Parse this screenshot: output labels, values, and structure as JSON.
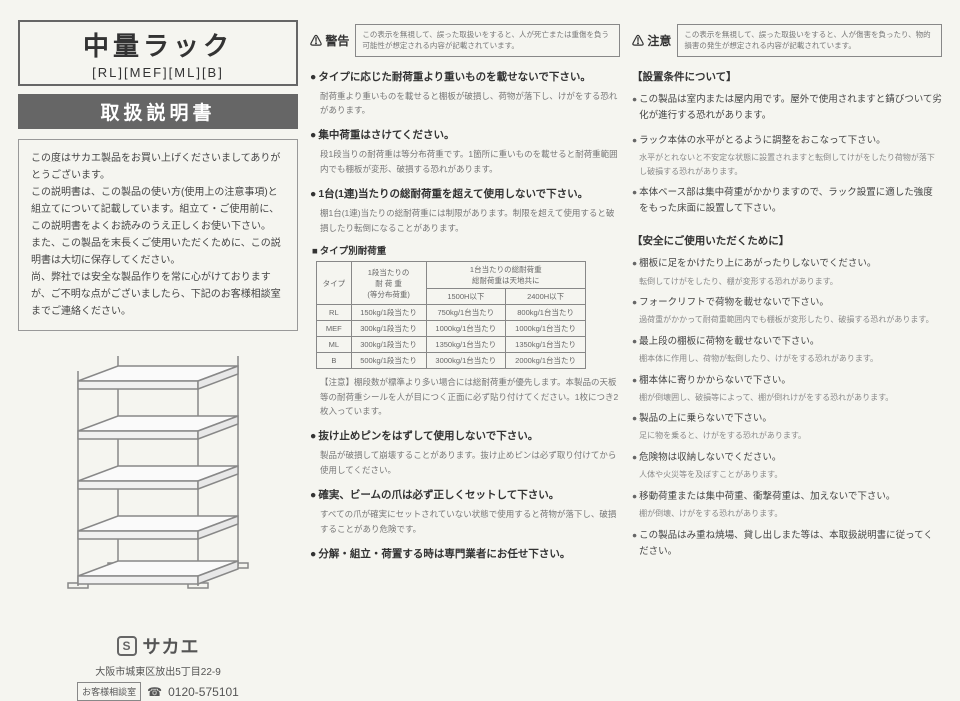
{
  "col1": {
    "title_main": "中量ラック",
    "title_sub": "[RL][MEF][ML][B]",
    "banner": "取扱説明書",
    "intro": "この度はサカエ製品をお買い上げくださいましてありがとうございます。\nこの説明書は、この製品の使い方(使用上の注意事項)と組立てについて記載しています。組立て・ご使用前に、この説明書をよくお読みのうえ正しくお使い下さい。\nまた、この製品を末長くご使用いただくために、この説明書は大切に保存してください。\n尚、弊社では安全な製品作りを常に心がけておりますが、ご不明な点がございましたら、下記のお客様相談室までご連絡ください。",
    "logo_s": "S",
    "logo_name": "サカエ",
    "address": "大阪市城東区放出5丁目22-9",
    "phone_label": "お客様相談室",
    "phone_icon": "☎",
    "phone_num": "0120-575101"
  },
  "warnings": [
    {
      "label": "⚠ 警告",
      "text": "この表示を無視して、誤った取扱いをすると、人が死亡または重傷を負う可能性が想定される内容が記載されています。"
    },
    {
      "label": "⚠ 注意",
      "text": "この表示を無視して、誤った取扱いをすると、人が傷害を負ったり、物的損害の発生が想定される内容が記載されています。"
    }
  ],
  "col2_sections": [
    {
      "head": "タイプに応じた耐荷重より重いものを載せないで下さい。",
      "body": "耐荷重より重いものを載せると棚板が破損し、荷物が落下し、けがをする恐れがあります。"
    },
    {
      "head": "集中荷重はさけてください。",
      "body": "段1段当りの耐荷重は等分布荷重です。1箇所に重いものを載せると耐荷重範囲内でも棚板が変形、破損する恐れがあります。"
    },
    {
      "head": "1台(1連)当たりの総耐荷重を超えて使用しないで下さい。",
      "body": "棚1台(1連)当たりの総耐荷重には制限があります。制限を超えて使用すると破損したり転倒になることがあります。"
    }
  ],
  "load_table": {
    "title": "タイプ別耐荷重",
    "head_r1": [
      "タイプ",
      "1段当たりの\n耐 荷 重\n(等分布荷重)",
      "1台当たりの総耐荷重\n総耐荷重は天地共に"
    ],
    "head_r2": [
      "1500H以下",
      "2400H以下"
    ],
    "rows": [
      [
        "RL",
        "150kg/1段当たり",
        "750kg/1台当たり",
        "800kg/1台当たり"
      ],
      [
        "MEF",
        "300kg/1段当たり",
        "1000kg/1台当たり",
        "1000kg/1台当たり"
      ],
      [
        "ML",
        "300kg/1段当たり",
        "1350kg/1台当たり",
        "1350kg/1台当たり"
      ],
      [
        "B",
        "500kg/1段当たり",
        "3000kg/1台当たり",
        "2000kg/1台当たり"
      ]
    ],
    "note": "【注意】棚段数が標準より多い場合には総耐荷重が優先します。本製品の天板等の耐荷重シールを人が目につく正面に必ず貼り付けてください。1枚につき2枚入っています。"
  },
  "col2_tail": [
    {
      "head": "抜け止めピンをはずして使用しないで下さい。",
      "body": "製品が破損して崩壊することがあります。抜け止めピンは必ず取り付けてから使用してください。"
    },
    {
      "head": "確実、ビームの爪は必ず正しくセットして下さい。",
      "body": "すべての爪が確実にセットされていない状態で使用すると荷物が落下し、破損することがあり危険です。"
    },
    {
      "head": "分解・組立・荷置する時は専門業者にお任せ下さい。"
    }
  ],
  "col3": {
    "head1": "【設置条件について】",
    "items1": [
      {
        "h": "この製品は室内または屋内用です。屋外で使用されますと錆びついて劣化が進行する恐れがあります。"
      },
      {
        "h": "ラック本体の水平がとるように調整をおこなって下さい。",
        "s": "水平がとれないと不安定な状態に設置されますと転倒してけがをしたり荷物が落下し破損する恐れがあります。"
      },
      {
        "h": "本体ベース部は集中荷重がかかりますので、ラック設置に適した強度をもった床面に設置して下さい。"
      }
    ],
    "head2": "【安全にご使用いただくために】",
    "items2": [
      {
        "h": "棚板に足をかけたり上にあがったりしないでください。",
        "s": "転倒してけがをしたり、棚が変形する恐れがあります。"
      },
      {
        "h": "フォークリフトで荷物を載せないで下さい。",
        "s": "過荷重がかかって耐荷重範囲内でも棚板が変形したり、破損する恐れがあります。"
      },
      {
        "h": "最上段の棚板に荷物を載せないで下さい。",
        "s": "棚本体に作用し、荷物が転倒したり、けがをする恐れがあります。"
      },
      {
        "h": "棚本体に寄りかからないで下さい。",
        "s": "棚が倒壊囲し、破損等によって、棚が倒れけがをする恐れがあります。"
      },
      {
        "h": "製品の上に乗らないで下さい。",
        "s": "足に物を乗ると、けがをする恐れがあります。"
      },
      {
        "h": "危険物は収納しないでください。",
        "s": "人体や火災等を及ぼすことがあります。"
      },
      {
        "h": "移動荷重または集中荷重、衝撃荷重は、加えないで下さい。",
        "s": "棚が倒壊、けがをする恐れがあります。"
      },
      {
        "h": "この製品はみ重ね焼場、貸し出しまた等は、本取扱説明書に従ってください。"
      }
    ]
  }
}
